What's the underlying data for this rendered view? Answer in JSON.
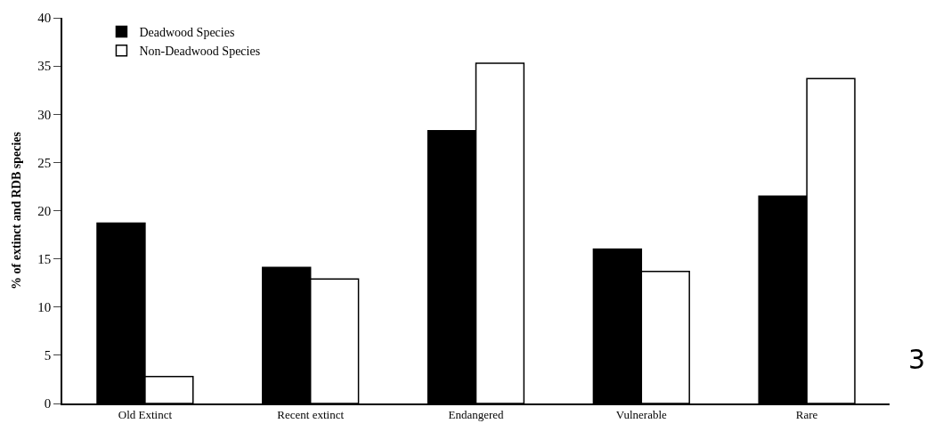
{
  "chart_data": {
    "type": "bar",
    "ylabel": "% of extinct and RDB species",
    "categories": [
      "Old Extinct",
      "Recent extinct",
      "Endangered",
      "Vulnerable",
      "Rare"
    ],
    "series": [
      {
        "name": "Deadwood Species",
        "color": "#000000",
        "values": [
          18.7,
          14.1,
          28.3,
          16.0,
          21.5
        ]
      },
      {
        "name": "Non-Deadwood Species",
        "color": "#ffffff",
        "values": [
          2.8,
          12.9,
          35.3,
          13.7,
          33.7
        ]
      }
    ],
    "ylim": [
      0,
      40
    ],
    "yticks": [
      0,
      5,
      10,
      15,
      20,
      25,
      30,
      35,
      40
    ],
    "legend": "top left",
    "annotations": [
      "3"
    ]
  }
}
